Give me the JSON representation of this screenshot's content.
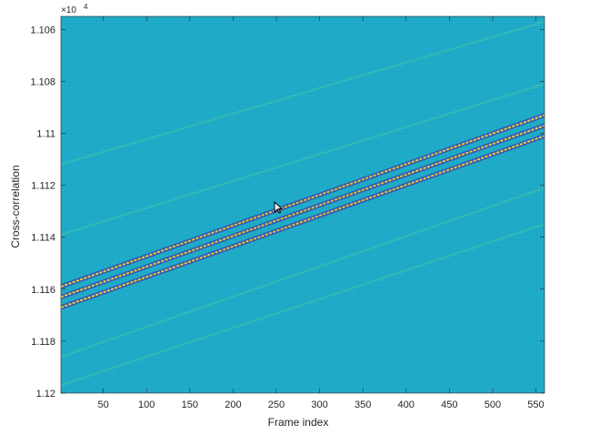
{
  "chart_data": {
    "type": "heatmap",
    "title": "",
    "xlabel": "Frame index",
    "ylabel": "Cross-correlation",
    "y_exponent_label": "×10",
    "y_exponent_power": "4",
    "xlim": [
      1,
      560
    ],
    "ylim": [
      1.1055,
      1.12
    ],
    "y_direction": "reversed",
    "x_ticks": [
      50,
      100,
      150,
      200,
      250,
      300,
      350,
      400,
      450,
      500,
      550
    ],
    "y_ticks": [
      1.106,
      1.108,
      1.11,
      1.112,
      1.114,
      1.116,
      1.118,
      1.12
    ],
    "y_tick_labels": [
      "1.106",
      "1.108",
      "1.11",
      "1.112",
      "1.114",
      "1.116",
      "1.118",
      "1.12"
    ],
    "colormap": "parula",
    "background_color": "#1fa9c9",
    "grid": false,
    "legend": "none",
    "bands": [
      {
        "x_start": 1,
        "y_start": 1.1159,
        "x_end": 560,
        "y_end": 1.1093,
        "intensity": "high"
      },
      {
        "x_start": 1,
        "y_start": 1.1163,
        "x_end": 560,
        "y_end": 1.1097,
        "intensity": "high"
      },
      {
        "x_start": 1,
        "y_start": 1.1167,
        "x_end": 560,
        "y_end": 1.1101,
        "intensity": "high"
      },
      {
        "x_start": 1,
        "y_start": 1.1112,
        "x_end": 560,
        "y_end": 1.1057,
        "intensity": "low"
      },
      {
        "x_start": 1,
        "y_start": 1.1139,
        "x_end": 560,
        "y_end": 1.1081,
        "intensity": "low"
      },
      {
        "x_start": 1,
        "y_start": 1.1186,
        "x_end": 560,
        "y_end": 1.1121,
        "intensity": "low"
      },
      {
        "x_start": 1,
        "y_start": 1.1197,
        "x_end": 560,
        "y_end": 1.1135,
        "intensity": "low"
      }
    ]
  }
}
